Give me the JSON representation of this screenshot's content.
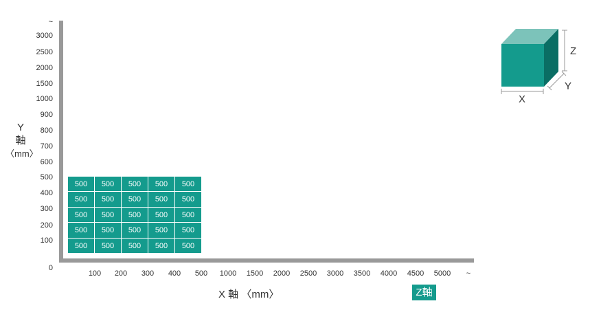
{
  "y_axis": {
    "label_line1": "Y",
    "label_line2": "軸",
    "label_unit": "〈mm〉",
    "ticks": [
      "~",
      "3000",
      "2500",
      "2000",
      "1500",
      "1000",
      "900",
      "800",
      "700",
      "600",
      "500",
      "400",
      "300",
      "200",
      "100",
      "0"
    ]
  },
  "x_axis": {
    "label": "X 軸 〈mm〉",
    "ticks": [
      "100",
      "200",
      "300",
      "400",
      "500",
      "1000",
      "1500",
      "2000",
      "2500",
      "3000",
      "3500",
      "4000",
      "4500",
      "5000",
      "~"
    ]
  },
  "z_button": {
    "label": "Z軸"
  },
  "grid": {
    "rows": [
      [
        "500",
        "500",
        "500",
        "500",
        "500"
      ],
      [
        "500",
        "500",
        "500",
        "500",
        "500"
      ],
      [
        "500",
        "500",
        "500",
        "500",
        "500"
      ],
      [
        "500",
        "500",
        "500",
        "500",
        "500"
      ],
      [
        "500",
        "500",
        "500",
        "500",
        "500"
      ]
    ]
  },
  "cube_legend": {
    "x": "X",
    "y": "Y",
    "z": "Z"
  },
  "colors": {
    "accent": "#149b8d",
    "axis": "#999999",
    "cube_top": "#7cc3ba",
    "cube_side": "#0a6e64"
  }
}
